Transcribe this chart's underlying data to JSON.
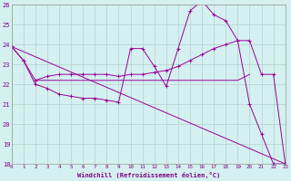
{
  "xlabel": "Windchill (Refroidissement éolien,°C)",
  "bg_color": "#d4f0f0",
  "grid_color": "#b0c8c8",
  "line_color": "#990099",
  "xmin": 0,
  "xmax": 23,
  "ymin": 18,
  "ymax": 26,
  "yticks": [
    18,
    19,
    20,
    21,
    22,
    23,
    24,
    25,
    26
  ],
  "line1_x": [
    0,
    1,
    2,
    3,
    4,
    5,
    6,
    7,
    8,
    9,
    10,
    11,
    12,
    13,
    14,
    15,
    16,
    17,
    18,
    19,
    20,
    21,
    22,
    23
  ],
  "line1_y": [
    23.9,
    23.2,
    22.0,
    21.8,
    21.5,
    21.4,
    21.3,
    21.3,
    21.2,
    21.1,
    23.8,
    23.8,
    22.9,
    21.9,
    23.8,
    25.7,
    26.2,
    25.5,
    25.2,
    24.2,
    21.0,
    19.5,
    18.0,
    18.0
  ],
  "line2_x": [
    0,
    1,
    2,
    3,
    4,
    5,
    6,
    7,
    8,
    9,
    10,
    11,
    12,
    13,
    14,
    15,
    16,
    17,
    18,
    19,
    20,
    21,
    22,
    23
  ],
  "line2_y": [
    23.9,
    23.2,
    22.2,
    22.4,
    22.5,
    22.5,
    22.5,
    22.5,
    22.5,
    22.4,
    22.5,
    22.5,
    22.6,
    22.7,
    22.9,
    23.2,
    23.5,
    23.8,
    24.0,
    24.2,
    24.2,
    22.5,
    22.5,
    18.0
  ],
  "line3_x": [
    2,
    3,
    4,
    5,
    6,
    7,
    8,
    9,
    10,
    11,
    12,
    13,
    14,
    15,
    16,
    17,
    18,
    19,
    20
  ],
  "line3_y": [
    22.2,
    22.2,
    22.2,
    22.2,
    22.2,
    22.2,
    22.2,
    22.2,
    22.2,
    22.2,
    22.2,
    22.2,
    22.2,
    22.2,
    22.2,
    22.2,
    22.2,
    22.2,
    22.5
  ],
  "line4_x": [
    0,
    23
  ],
  "line4_y": [
    23.9,
    18.0
  ]
}
